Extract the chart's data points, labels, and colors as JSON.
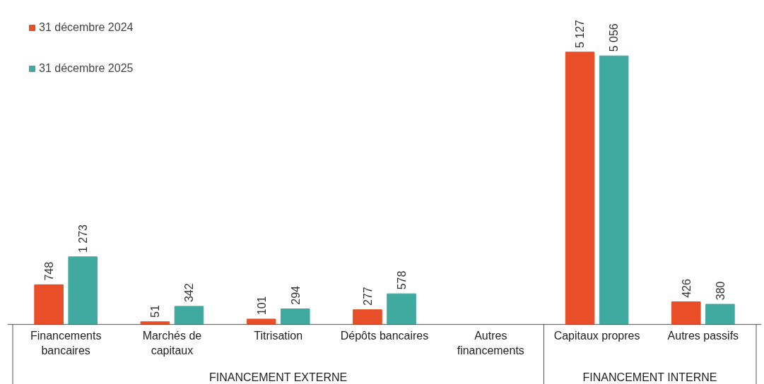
{
  "chart_data": {
    "type": "bar",
    "categories": [
      "Financements\nbancaires",
      "Marchés de\ncapitaux",
      "Titrisation",
      "Dépôts bancaires",
      "Autres\nfinancements",
      "Capitaux propres",
      "Autres passifs"
    ],
    "series": [
      {
        "name": "31 décembre 2024",
        "color": "#e84e27",
        "values": [
          748,
          51,
          101,
          277,
          null,
          5127,
          426
        ],
        "value_labels": [
          "748",
          "51",
          "101",
          "277",
          null,
          "5 127",
          "426"
        ]
      },
      {
        "name": "31 décembre 2025",
        "color": "#40a9a0",
        "values": [
          1273,
          342,
          294,
          578,
          null,
          5056,
          380
        ],
        "value_labels": [
          "1 273",
          "342",
          "294",
          "578",
          null,
          "5 056",
          "380"
        ]
      }
    ],
    "annotations": [
      "FINANCEMENT EXTERNE",
      "FINANCEMENT INTERNE"
    ],
    "legend": "top left",
    "grid": false
  }
}
